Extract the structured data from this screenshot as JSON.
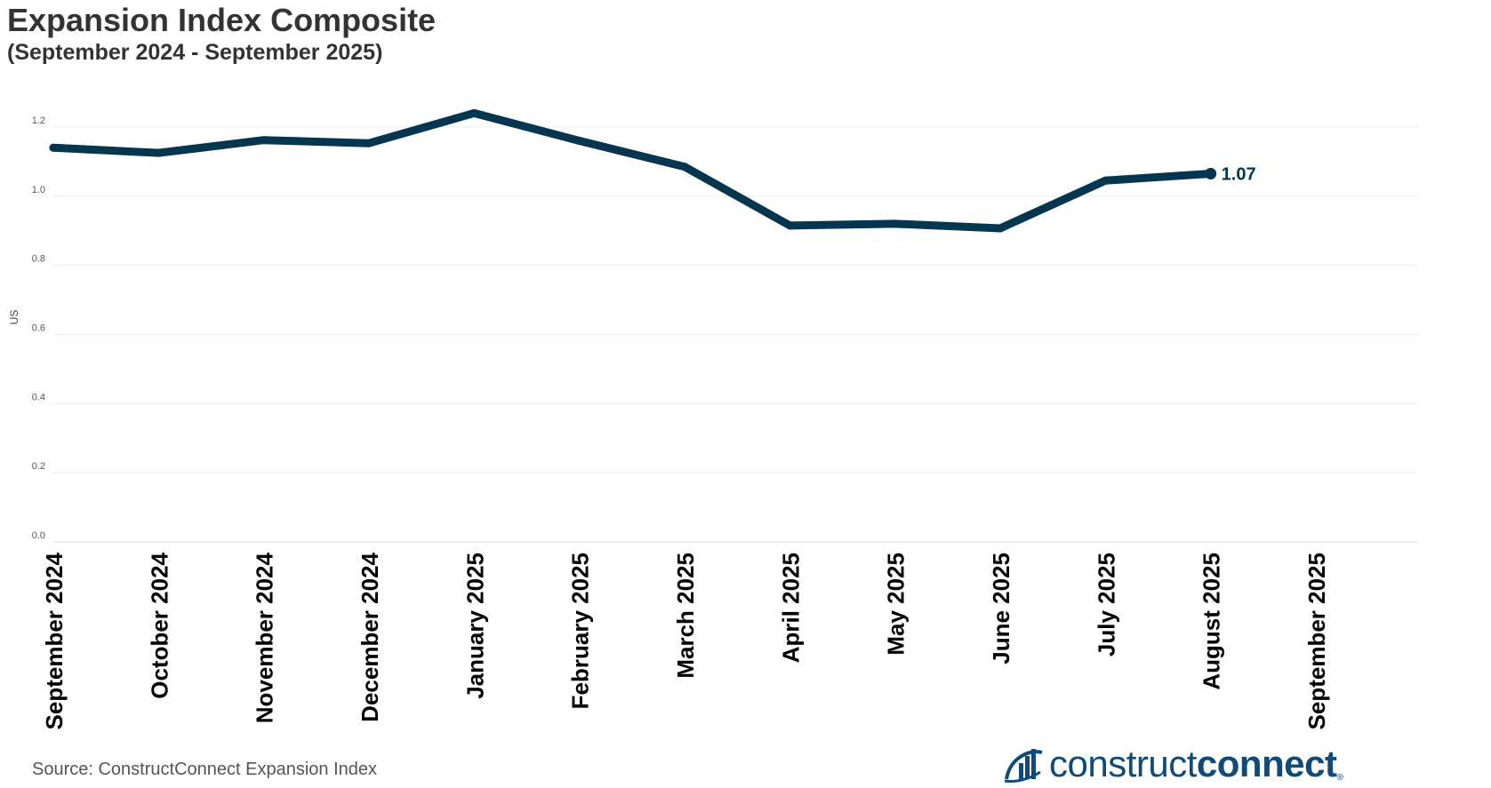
{
  "chart_data": {
    "type": "line",
    "title": "Expansion Index Composite",
    "subtitle": "(September 2024 - September 2025)",
    "ylabel": "US",
    "xlabel": "",
    "categories": [
      "September 2024",
      "October 2024",
      "November 2024",
      "December 2024",
      "January 2025",
      "February 2025",
      "March 2025",
      "April 2025",
      "May 2025",
      "June 2025",
      "July 2025",
      "August 2025",
      "September 2025"
    ],
    "series": [
      {
        "values": [
          1.14,
          1.125,
          1.162,
          1.153,
          1.24,
          1.16,
          1.085,
          0.915,
          0.92,
          0.907,
          1.045,
          1.065,
          null
        ],
        "color": "#04364f"
      }
    ],
    "end_label": "1.07",
    "ylim": [
      0,
      1.3
    ],
    "yticks": [
      "0.0",
      "0.2",
      "0.4",
      "0.6",
      "0.8",
      "1.0",
      "1.2"
    ],
    "grid": true,
    "legend": "none"
  },
  "footer": {
    "source": "Source: ConstructConnect Expansion Index",
    "logo_text_regular": "construct",
    "logo_text_bold": "connect",
    "logo_mark": "®",
    "logo_icon": "bar-chart-swoosh-icon",
    "logo_color": "#0e4a7a"
  }
}
